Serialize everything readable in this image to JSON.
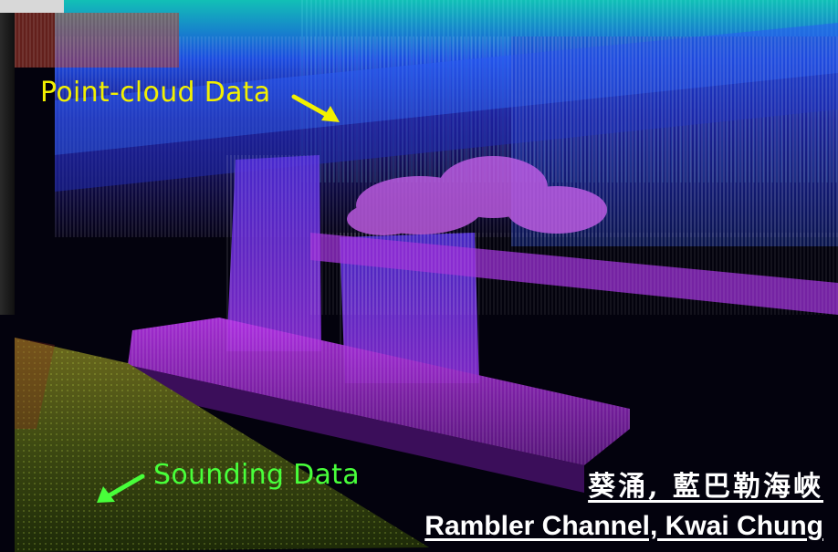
{
  "labels": {
    "point_cloud": "Point-cloud Data",
    "sounding": "Sounding Data",
    "location_zh": "葵涌, 藍巴勒海峽",
    "location_en": "Rambler Channel, Kwai Chung"
  },
  "colors": {
    "point_cloud_label": "#f2f000",
    "sounding_label": "#48ff3a",
    "location_text": "#ffffff"
  }
}
